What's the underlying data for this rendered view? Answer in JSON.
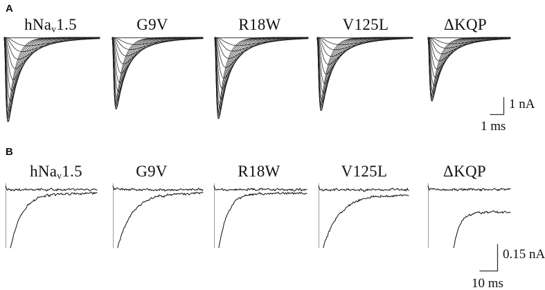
{
  "panels": {
    "a": "A",
    "b": "B"
  },
  "variant_labels": [
    {
      "pre": "hNa",
      "sub": "v",
      "post": "1.5"
    },
    {
      "pre": "G9V",
      "sub": "",
      "post": ""
    },
    {
      "pre": "R18W",
      "sub": "",
      "post": ""
    },
    {
      "pre": "V125L",
      "sub": "",
      "post": ""
    },
    {
      "pre": "ΔKQP",
      "sub": "",
      "post": ""
    }
  ],
  "scalebars": {
    "a": {
      "v": "1 nA",
      "h": "1 ms"
    },
    "b": {
      "v": "0.15 nA",
      "h": "10 ms"
    }
  },
  "chart_data": [
    {
      "type": "line",
      "panel": "A",
      "description": "Families of macroscopic voltage-gated Na+ current traces (fast activating, fast inactivating inward currents) evoked by step depolarizations",
      "x_axis": {
        "unit": "ms",
        "scalebar_value": 1
      },
      "y_axis": {
        "unit": "nA",
        "scalebar_value": 1
      },
      "sweep_ms": 7,
      "traces_per_family": 13,
      "series": [
        {
          "name": "hNaV1.5",
          "peak_nA": -5.3
        },
        {
          "name": "G9V",
          "peak_nA": -4.5
        },
        {
          "name": "R18W",
          "peak_nA": -5.1
        },
        {
          "name": "V125L",
          "peak_nA": -4.6
        },
        {
          "name": "ΔKQP",
          "peak_nA": -4.0
        }
      ]
    },
    {
      "type": "line",
      "panel": "B",
      "description": "High-gain recordings showing late (persistent) Na+ current: flat noisy baseline trace on top and a recovering inward-current trace below; ΔKQP shows a large persistent current that does not return to baseline",
      "x_axis": {
        "unit": "ms",
        "scalebar_value": 10
      },
      "y_axis": {
        "unit": "nA",
        "scalebar_value": 0.15
      },
      "sweep_ms": 47,
      "series": [
        {
          "name": "hNaV1.5",
          "persistent_nA": -0.02
        },
        {
          "name": "G9V",
          "persistent_nA": -0.02
        },
        {
          "name": "R18W",
          "persistent_nA": -0.02
        },
        {
          "name": "V125L",
          "persistent_nA": -0.03
        },
        {
          "name": "ΔKQP",
          "persistent_nA": -0.13
        }
      ]
    }
  ]
}
